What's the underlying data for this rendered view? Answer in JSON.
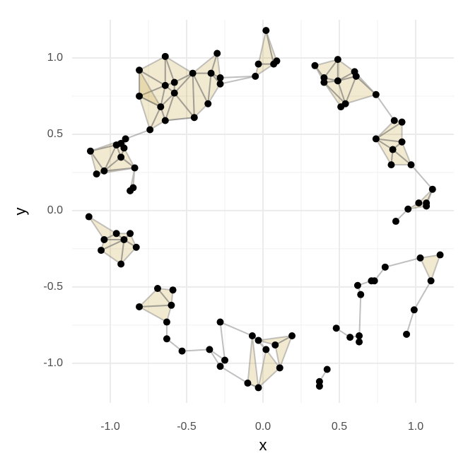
{
  "chart_data": {
    "type": "scatter",
    "x_label": "x",
    "y_label": "y",
    "xlim": [
      -1.25,
      1.25
    ],
    "ylim": [
      -1.26,
      1.25
    ],
    "xticks": [
      {
        "value": -1,
        "label": "-1.0"
      },
      -0.5,
      {
        "value": 0,
        "label": "0.0"
      },
      0.5,
      {
        "value": 1,
        "label": "1.0"
      }
    ],
    "yticks": [
      {
        "value": -1,
        "label": "-1.0"
      },
      -0.5,
      {
        "value": 0,
        "label": "0.0"
      },
      0.5,
      {
        "value": 1,
        "label": "1.0"
      }
    ],
    "x_minor_ticks": [
      -0.75,
      -0.25,
      0.25,
      0.75
    ],
    "y_minor_ticks": [
      -0.75,
      -0.25,
      0.25,
      0.75
    ],
    "grid": true,
    "point_color": "#000000",
    "fill_color": "#c49a2c",
    "edge_color": "#7f7f7f",
    "x": [
      -0.81,
      -0.64,
      -0.81,
      -0.64,
      -0.58,
      -0.58,
      -0.67,
      -0.64,
      -0.46,
      -0.34,
      -0.3,
      -0.28,
      -0.28,
      -0.36,
      -0.45,
      -0.74,
      0.02,
      -0.03,
      -0.05,
      0.07,
      0.09,
      0.34,
      0.49,
      0.4,
      0.4,
      0.49,
      0.6,
      0.61,
      0.54,
      0.51,
      0.74,
      0.86,
      0.91,
      0.74,
      0.91,
      0.85,
      0.84,
      0.97,
      1.11,
      1.02,
      1.07,
      1.07,
      0.95,
      0.87,
      -1.13,
      -0.9,
      -0.96,
      -0.93,
      -0.91,
      -0.93,
      -1.04,
      -1.09,
      -0.84,
      -0.85,
      -0.87,
      -1.14,
      -0.96,
      -0.87,
      -1.04,
      -0.91,
      -1.06,
      -0.83,
      -0.93,
      -0.69,
      -0.59,
      -0.81,
      -0.6,
      -0.63,
      -0.63,
      -0.53,
      -0.35,
      -0.28,
      -0.25,
      -0.28,
      -0.07,
      -0.03,
      0.08,
      0.02,
      0.19,
      -0.1,
      -0.03,
      0.11,
      0.42,
      0.37,
      0.37,
      0.48,
      0.57,
      0.63,
      0.63,
      0.62,
      0.71,
      0.73,
      0.8,
      0.64,
      1.03,
      1.16,
      1.1,
      0.99,
      0.94
    ],
    "y": [
      0.92,
      1.01,
      0.75,
      0.82,
      0.84,
      0.77,
      0.68,
      0.59,
      0.9,
      0.9,
      1.03,
      0.87,
      0.83,
      0.7,
      0.61,
      0.53,
      1.18,
      0.96,
      0.88,
      0.96,
      0.98,
      0.95,
      0.99,
      0.87,
      0.84,
      0.85,
      0.91,
      0.88,
      0.7,
      0.68,
      0.76,
      0.59,
      0.58,
      0.47,
      0.45,
      0.4,
      0.3,
      0.3,
      0.14,
      0.05,
      0.05,
      0.03,
      0.01,
      -0.07,
      0.39,
      0.47,
      0.43,
      0.44,
      0.41,
      0.35,
      0.26,
      0.24,
      0.28,
      0.15,
      0.13,
      -0.04,
      -0.15,
      -0.15,
      -0.19,
      -0.19,
      -0.26,
      -0.24,
      -0.35,
      -0.51,
      -0.52,
      -0.63,
      -0.62,
      -0.73,
      -0.84,
      -0.92,
      -0.91,
      -0.73,
      -0.98,
      -1.02,
      -0.82,
      -0.85,
      -0.88,
      -0.91,
      -0.82,
      -1.13,
      -1.16,
      -1.03,
      -1.04,
      -1.12,
      -1.15,
      -0.77,
      -0.83,
      -0.82,
      -0.86,
      -0.49,
      -0.46,
      -0.46,
      -0.37,
      -0.55,
      -0.31,
      -0.29,
      -0.46,
      -0.65,
      -0.81
    ],
    "triangles": [
      [
        0,
        1,
        3
      ],
      [
        0,
        3,
        2
      ],
      [
        1,
        3,
        4
      ],
      [
        1,
        4,
        8
      ],
      [
        3,
        4,
        5
      ],
      [
        2,
        3,
        6
      ],
      [
        3,
        5,
        6
      ],
      [
        5,
        6,
        7
      ],
      [
        4,
        5,
        8
      ],
      [
        8,
        9,
        10
      ],
      [
        9,
        10,
        11
      ],
      [
        8,
        9,
        13
      ],
      [
        5,
        8,
        14
      ],
      [
        8,
        13,
        14
      ],
      [
        2,
        6,
        15
      ],
      [
        6,
        7,
        15
      ],
      [
        9,
        11,
        12
      ],
      [
        12,
        13,
        9
      ],
      [
        5,
        7,
        14
      ],
      [
        0,
        2,
        6
      ],
      [
        16,
        17,
        19
      ],
      [
        16,
        19,
        20
      ],
      [
        17,
        18,
        19
      ],
      [
        21,
        22,
        23
      ],
      [
        22,
        23,
        25
      ],
      [
        23,
        24,
        25
      ],
      [
        22,
        25,
        26
      ],
      [
        25,
        26,
        27
      ],
      [
        24,
        25,
        28
      ],
      [
        25,
        27,
        28
      ],
      [
        28,
        29,
        24
      ],
      [
        27,
        28,
        30
      ],
      [
        26,
        27,
        30
      ],
      [
        21,
        23,
        24
      ],
      [
        31,
        32,
        33
      ],
      [
        32,
        33,
        34
      ],
      [
        33,
        34,
        35
      ],
      [
        33,
        35,
        36
      ],
      [
        35,
        36,
        37
      ],
      [
        34,
        35,
        37
      ],
      [
        38,
        39,
        40
      ],
      [
        38,
        40,
        41
      ],
      [
        39,
        41,
        42
      ],
      [
        44,
        45,
        46
      ],
      [
        45,
        46,
        47
      ],
      [
        45,
        47,
        48
      ],
      [
        46,
        48,
        49
      ],
      [
        44,
        46,
        50
      ],
      [
        44,
        50,
        51
      ],
      [
        46,
        49,
        50
      ],
      [
        48,
        49,
        52
      ],
      [
        49,
        50,
        52
      ],
      [
        50,
        51,
        52
      ],
      [
        52,
        53,
        54
      ],
      [
        55,
        56,
        58
      ],
      [
        56,
        57,
        59
      ],
      [
        56,
        58,
        59
      ],
      [
        58,
        59,
        60
      ],
      [
        59,
        60,
        62
      ],
      [
        57,
        59,
        61
      ],
      [
        59,
        61,
        62
      ],
      [
        63,
        65,
        66
      ],
      [
        63,
        64,
        66
      ],
      [
        65,
        66,
        67
      ],
      [
        75,
        76,
        78
      ],
      [
        76,
        78,
        81
      ],
      [
        74,
        75,
        77
      ],
      [
        77,
        80,
        81
      ],
      [
        74,
        79,
        80
      ],
      [
        94,
        95,
        96
      ]
    ],
    "edges": [
      [
        7,
        14
      ],
      [
        15,
        45
      ],
      [
        12,
        18
      ],
      [
        11,
        18
      ],
      [
        30,
        31
      ],
      [
        37,
        38
      ],
      [
        43,
        42
      ],
      [
        67,
        68
      ],
      [
        68,
        69
      ],
      [
        69,
        70
      ],
      [
        70,
        72
      ],
      [
        70,
        73
      ],
      [
        71,
        74
      ],
      [
        72,
        71
      ],
      [
        73,
        79
      ],
      [
        79,
        80
      ],
      [
        82,
        83
      ],
      [
        83,
        84
      ],
      [
        85,
        86
      ],
      [
        86,
        87
      ],
      [
        87,
        88
      ],
      [
        88,
        93
      ],
      [
        93,
        89
      ],
      [
        89,
        90
      ],
      [
        90,
        91
      ],
      [
        91,
        92
      ],
      [
        92,
        94
      ],
      [
        96,
        97
      ],
      [
        97,
        98
      ]
    ]
  }
}
